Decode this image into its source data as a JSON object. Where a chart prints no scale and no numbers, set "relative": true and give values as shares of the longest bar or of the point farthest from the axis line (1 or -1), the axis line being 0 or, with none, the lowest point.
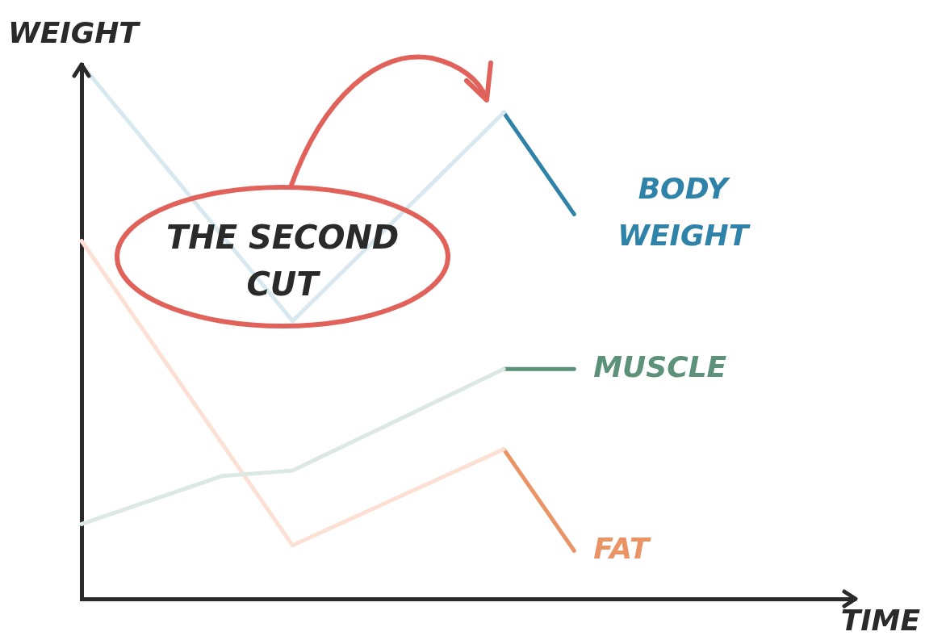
{
  "chart_data": {
    "type": "line",
    "xlabel": "TIME",
    "ylabel": "WEIGHT",
    "relative": true,
    "legend": false,
    "grid": false,
    "marker": "none",
    "categories": [
      null,
      null,
      null,
      null,
      null,
      null,
      null,
      null,
      null,
      null,
      null,
      null
    ],
    "series": [
      {
        "color": "#d8e8ef",
        "values": [
          1,
          null,
          null,
          0.52,
          null,
          null,
          0.91,
          null,
          null,
          null,
          null,
          null
        ]
      },
      {
        "color": "#dce8e2",
        "values": [
          0.14,
          null,
          0.23,
          0.24,
          null,
          null,
          0.43,
          null,
          null,
          null,
          null,
          null
        ]
      },
      {
        "color": "#fbe0d3",
        "values": [
          0.67,
          null,
          null,
          0.1,
          null,
          null,
          0.28,
          null,
          null,
          null,
          null,
          null
        ]
      },
      {
        "name": "BODY WEIGHT",
        "color": "#2f82a8",
        "values": [
          null,
          null,
          null,
          null,
          null,
          null,
          0.91,
          0.72,
          null,
          null,
          null,
          null
        ]
      },
      {
        "name": "MUSCLE",
        "color": "#5c917a",
        "values": [
          null,
          null,
          null,
          null,
          null,
          null,
          0.43,
          0.43,
          null,
          null,
          null,
          null
        ]
      },
      {
        "name": "FAT",
        "color": "#ea9466",
        "values": [
          null,
          null,
          null,
          null,
          null,
          null,
          0.28,
          0.09,
          null,
          null,
          null,
          null
        ]
      }
    ],
    "annotations": [
      "THE SECOND CUT"
    ]
  }
}
